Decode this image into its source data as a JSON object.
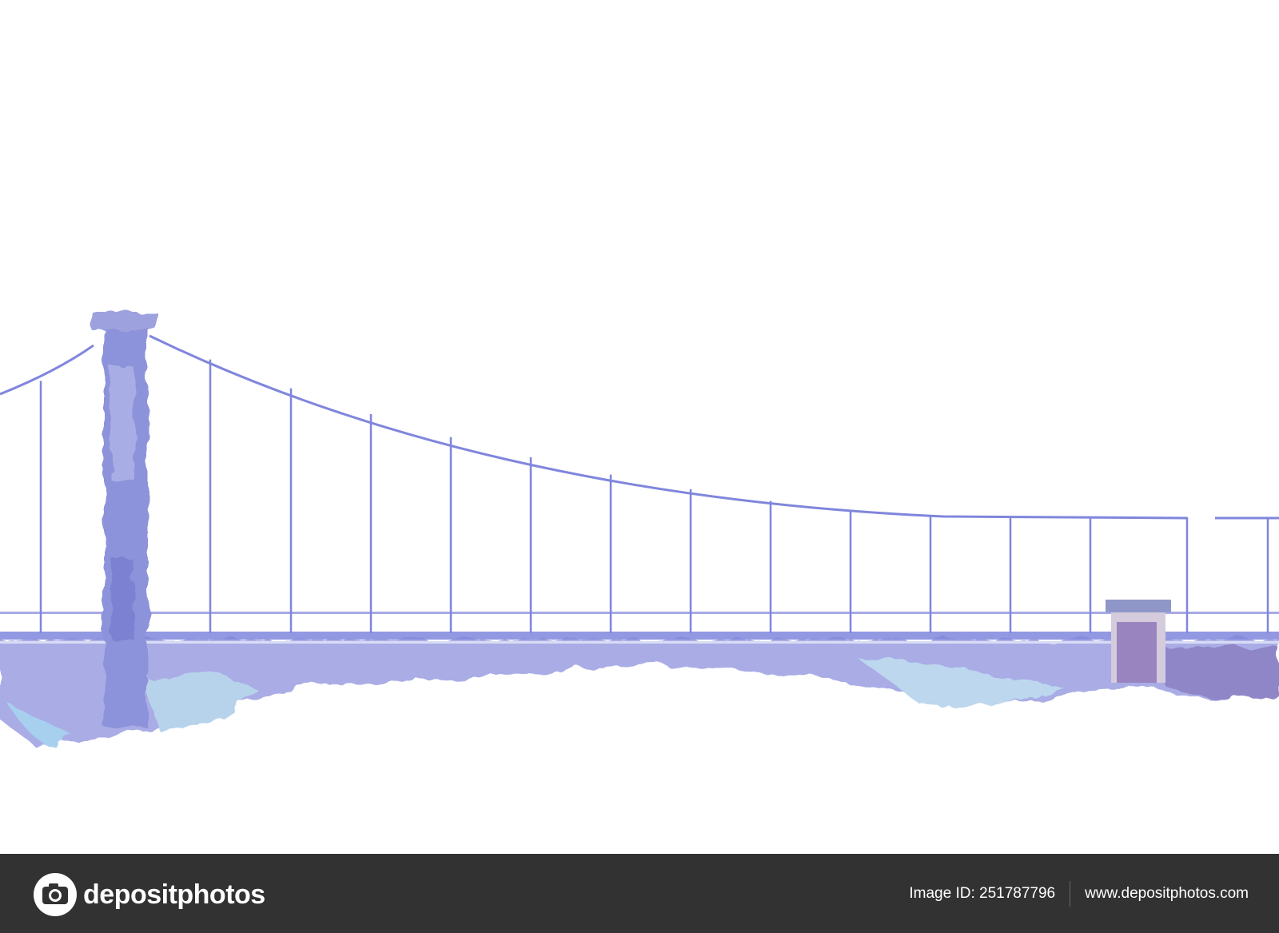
{
  "image": {
    "subject": "watercolor suspension bridge",
    "colors": {
      "bridge": "#7f86dc",
      "tower": "#8a90d6",
      "mist": "#a9c9e6",
      "footer": "#323232"
    }
  },
  "watermark": {
    "brand": "depositphotos"
  },
  "footer": {
    "logo_text": "depositphotos",
    "image_id": "Image ID: 251787796",
    "website": "www.depositphotos.com"
  }
}
